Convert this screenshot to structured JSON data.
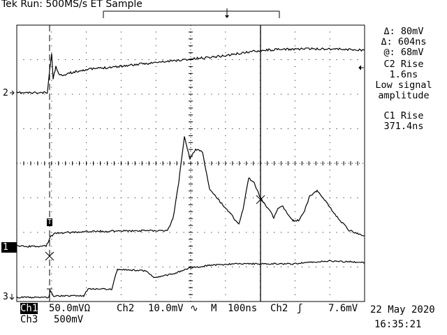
{
  "status": {
    "text": "Tek Run: 500MS/s ET Sample"
  },
  "measurements": {
    "delta_v": "Δ: 80mV",
    "delta_t": "Δ: 604ns",
    "at_v": "@: 68mV",
    "c2_rise_label": "C2 Rise",
    "c2_rise_value": "1.6ns",
    "warning_line1": "Low signal",
    "warning_line2": "amplitude",
    "c1_rise_label": "C1 Rise",
    "c1_rise_value": "371.4ns"
  },
  "channel_markers": {
    "ch2": "2",
    "ch1": "1",
    "ch3": "3"
  },
  "bottom": {
    "ch1_label": "Ch1",
    "ch1_scale": "50.0mVΩ",
    "ch2_label": "Ch2",
    "ch2_scale": "10.0mV",
    "ch2_bw": "∿",
    "time_label": "M",
    "time_scale": "100ns",
    "trigger_source": "Ch2",
    "trigger_slope": "ʃ",
    "trigger_level": "7.6mV",
    "date": "22 May 2020",
    "ch3_label": "Ch3",
    "ch3_scale": "500mV",
    "time": "16:35:21"
  },
  "trigger_marker": "T",
  "colors": {
    "trace": "#000000",
    "background": "#ffffff"
  }
}
